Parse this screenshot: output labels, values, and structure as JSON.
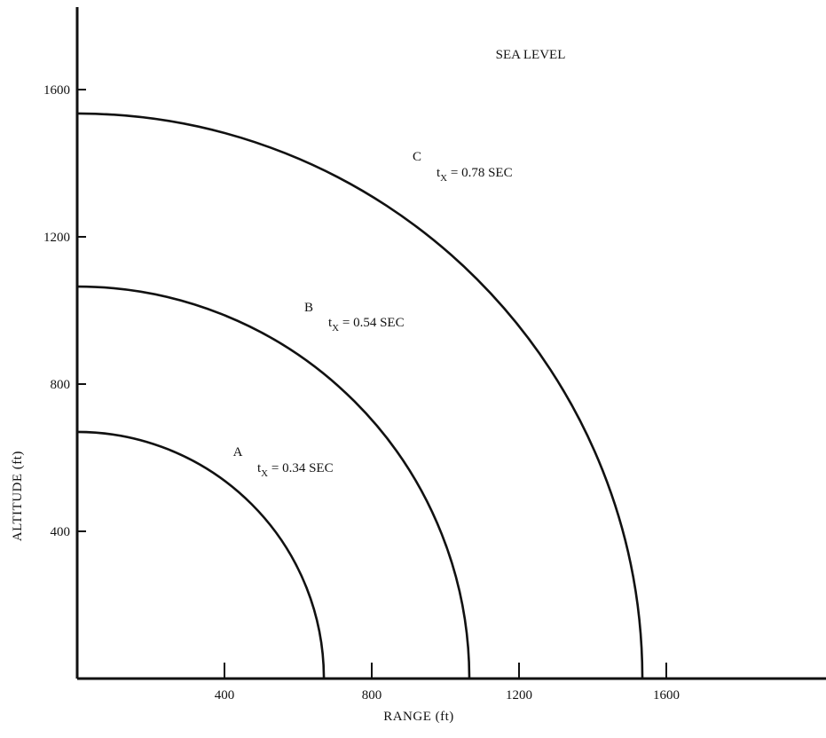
{
  "chart_data": {
    "type": "line",
    "title": "",
    "annotation": "SEA LEVEL",
    "xlabel": "RANGE (ft)",
    "ylabel": "ALTITUDE (ft)",
    "xlim": [
      0,
      2050
    ],
    "ylim": [
      0,
      1830
    ],
    "x_ticks": [
      400,
      800,
      1200,
      1600
    ],
    "x_tick_labels": [
      "400",
      "800",
      "1200",
      "1600"
    ],
    "y_ticks": [
      400,
      800,
      1200,
      1600
    ],
    "y_tick_labels": [
      "400",
      "800",
      "1200",
      "1600"
    ],
    "grid": false,
    "series": [
      {
        "name": "A",
        "label_prefix": "t",
        "label_subscript": "X",
        "label_suffix": " = 0.34 SEC",
        "shape": "quarter-circle",
        "radius": 670
      },
      {
        "name": "B",
        "label_prefix": "t",
        "label_subscript": "X",
        "label_suffix": " = 0.54 SEC",
        "shape": "quarter-circle",
        "radius": 1065
      },
      {
        "name": "C",
        "label_prefix": "t",
        "label_subscript": "X",
        "label_suffix": " = 0.78 SEC",
        "shape": "quarter-circle",
        "radius": 1535
      }
    ],
    "stroke_color": "#111111"
  }
}
